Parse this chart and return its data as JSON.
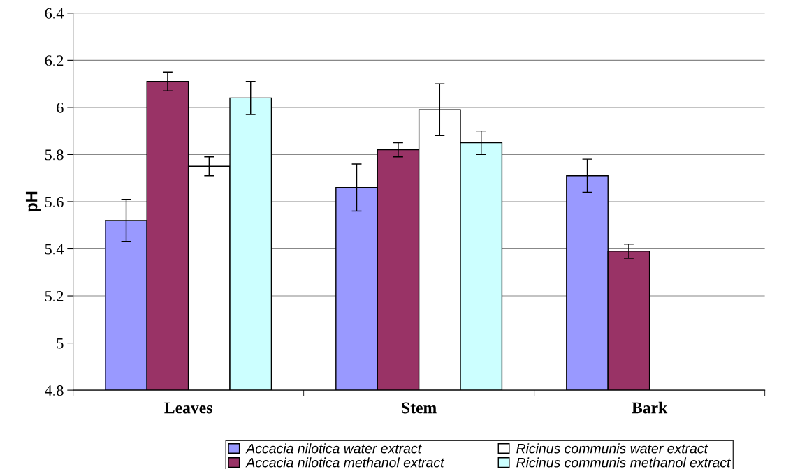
{
  "chart_data": {
    "type": "bar",
    "ylabel": "pH",
    "categories": [
      "Leaves",
      "Stem",
      "Bark"
    ],
    "series": [
      {
        "name": "Accacia nilotica water extract",
        "color": "#9999ff",
        "values": [
          5.52,
          5.66,
          5.71
        ],
        "errors": [
          0.09,
          0.1,
          0.07
        ]
      },
      {
        "name": "Accacia nilotica methanol extract",
        "color": "#993366",
        "values": [
          6.11,
          5.82,
          5.39
        ],
        "errors": [
          0.04,
          0.03,
          0.03
        ]
      },
      {
        "name": "Ricinus communis water extract",
        "color": "#ffffff",
        "values": [
          5.75,
          5.99,
          null
        ],
        "errors": [
          0.04,
          0.11,
          null
        ]
      },
      {
        "name": "Ricinus communis methanol extract",
        "color": "#ccffff",
        "values": [
          6.04,
          5.85,
          null
        ],
        "errors": [
          0.07,
          0.05,
          null
        ]
      }
    ],
    "ylim": [
      4.8,
      6.4
    ],
    "yticks": [
      4.8,
      5,
      5.2,
      5.4,
      5.6,
      5.8,
      6,
      6.2,
      6.4
    ],
    "grid": "y",
    "legend": "bottom"
  }
}
